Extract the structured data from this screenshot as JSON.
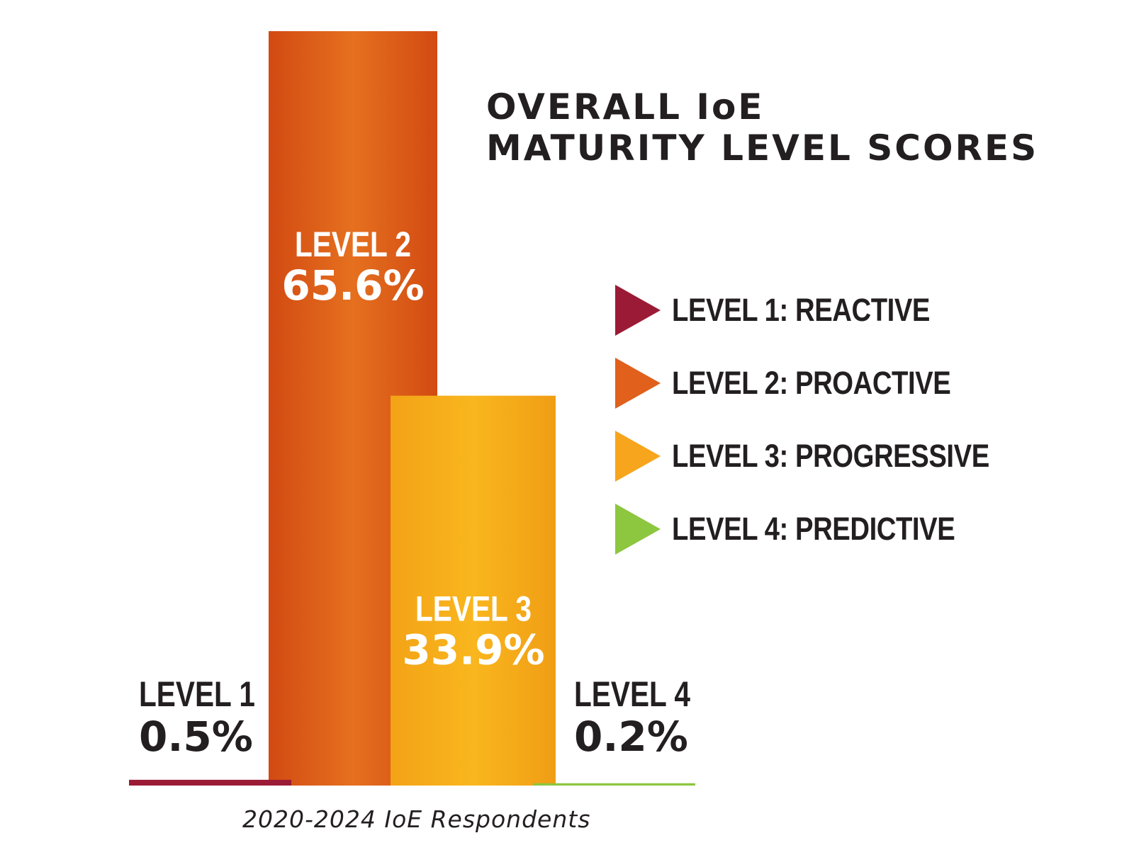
{
  "chart_data": {
    "type": "bar",
    "title_lines": [
      "OVERALL IoE",
      "MATURITY LEVEL SCORES"
    ],
    "categories": [
      "LEVEL 1",
      "LEVEL 2",
      "LEVEL 3",
      "LEVEL 4"
    ],
    "values": [
      0.5,
      65.6,
      33.9,
      0.2
    ],
    "value_labels": [
      "0.5%",
      "65.6%",
      "33.9%",
      "0.2%"
    ],
    "colors": [
      "#9b1b36",
      "#e0601c",
      "#f7a51c",
      "#8dc63f"
    ],
    "legend": [
      {
        "label": "LEVEL 1: REACTIVE",
        "color": "#9b1b36"
      },
      {
        "label": "LEVEL 2: PROACTIVE",
        "color": "#e0601c"
      },
      {
        "label": "LEVEL 3: PROGRESSIVE",
        "color": "#f7a51c"
      },
      {
        "label": "LEVEL 4: PREDICTIVE",
        "color": "#8dc63f"
      }
    ],
    "xlabel": "2020-2024 IoE Respondents",
    "legend_position": "right",
    "grid": false,
    "ylim": [
      0,
      65.6
    ]
  }
}
